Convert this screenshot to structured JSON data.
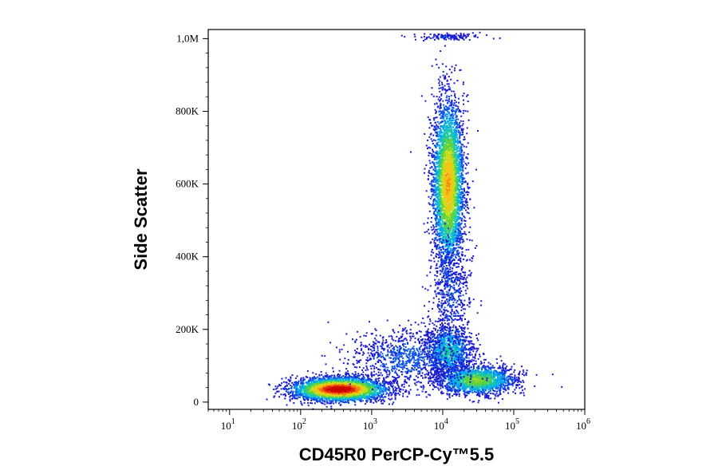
{
  "chart_data": {
    "type": "scatter",
    "subtype": "flow-cytometry-density-dot-plot",
    "xlabel": "CD45R0 PerCP-Cy™5.5",
    "ylabel": "Side Scatter",
    "x_scale": "log",
    "xlim": [
      5,
      1000000
    ],
    "ylim": [
      -20000,
      1025000
    ],
    "x_ticks": [
      {
        "value": 10,
        "base": "10",
        "exp": "1"
      },
      {
        "value": 100,
        "base": "10",
        "exp": "2"
      },
      {
        "value": 1000,
        "base": "10",
        "exp": "3"
      },
      {
        "value": 10000,
        "base": "10",
        "exp": "4"
      },
      {
        "value": 100000,
        "base": "10",
        "exp": "5"
      },
      {
        "value": 1000000,
        "base": "10",
        "exp": "6"
      }
    ],
    "y_ticks": [
      {
        "value": 0,
        "label": "0"
      },
      {
        "value": 200000,
        "label": "200K"
      },
      {
        "value": 400000,
        "label": "400K"
      },
      {
        "value": 600000,
        "label": "600K"
      },
      {
        "value": 800000,
        "label": "800K"
      },
      {
        "value": 1000000,
        "label": "1,0M"
      }
    ],
    "color_scale": [
      "#1a1ad0",
      "#0a52e6",
      "#00a8ee",
      "#18c8a6",
      "#5fd23c",
      "#c4de1e",
      "#f5c414",
      "#f07a10",
      "#e02a0c",
      "#cc0000"
    ],
    "populations": [
      {
        "x_center": 350,
        "y_center": 35000,
        "count": 3400,
        "log_sd": 0.33,
        "y_sd": 16000,
        "peak": 1.0
      },
      {
        "x_center": 12000,
        "y_center": 600000,
        "count": 3800,
        "log_sd": 0.11,
        "y_sd": 115000,
        "peak": 0.7
      },
      {
        "x_center": 30000,
        "y_center": 60000,
        "count": 1700,
        "log_sd": 0.28,
        "y_sd": 20000,
        "peak": 0.5
      },
      {
        "x_center": 12000,
        "y_center": 140000,
        "count": 1100,
        "log_sd": 0.17,
        "y_sd": 35000,
        "peak": 0.35
      },
      {
        "x_center": 3000,
        "y_center": 120000,
        "count": 900,
        "log_sd": 0.4,
        "y_sd": 40000,
        "peak": 0.15
      },
      {
        "x_center": 13000,
        "y_center": 300000,
        "count": 500,
        "log_sd": 0.15,
        "y_sd": 80000,
        "peak": 0.12
      },
      {
        "x_center": 12000,
        "y_center": 1005000,
        "count": 140,
        "log_sd": 0.22,
        "y_sd": 4000,
        "peak": 0.1
      }
    ]
  }
}
